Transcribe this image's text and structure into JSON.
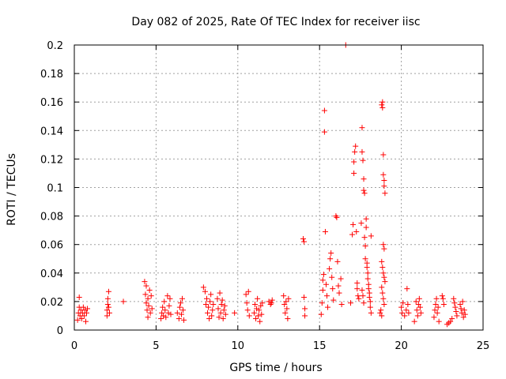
{
  "chart_data": {
    "type": "scatter",
    "title": "Day 082 of 2025, Rate Of TEC Index for receiver iisc",
    "xlabel": "GPS time / hours",
    "ylabel": "ROTI / TECUs",
    "xlim": [
      0,
      25
    ],
    "ylim": [
      0,
      0.2
    ],
    "xticks": [
      0,
      5,
      10,
      15,
      20,
      25
    ],
    "yticks": [
      0,
      0.02,
      0.04,
      0.06,
      0.08,
      0.1,
      0.12,
      0.14,
      0.16,
      0.18,
      0.2
    ],
    "xtick_labels": [
      "0",
      "5",
      "10",
      "15",
      "20",
      "25"
    ],
    "ytick_labels": [
      "0",
      "0.02",
      "0.04",
      "0.06",
      "0.08",
      "0.1",
      "0.12",
      "0.14",
      "0.16",
      "0.18",
      "0.2"
    ],
    "grid": true,
    "marker": "+",
    "color": "#ff0000",
    "series": [
      {
        "name": "ROTI",
        "points": [
          [
            0.2,
            0.007
          ],
          [
            0.25,
            0.012
          ],
          [
            0.3,
            0.016
          ],
          [
            0.3,
            0.023
          ],
          [
            0.35,
            0.01
          ],
          [
            0.4,
            0.014
          ],
          [
            0.45,
            0.008
          ],
          [
            0.5,
            0.012
          ],
          [
            0.55,
            0.016
          ],
          [
            0.6,
            0.01
          ],
          [
            0.65,
            0.014
          ],
          [
            0.7,
            0.006
          ],
          [
            0.75,
            0.012
          ],
          [
            0.8,
            0.015
          ],
          [
            2.0,
            0.01
          ],
          [
            2.0,
            0.014
          ],
          [
            2.05,
            0.018
          ],
          [
            2.05,
            0.022
          ],
          [
            2.1,
            0.027
          ],
          [
            2.1,
            0.016
          ],
          [
            2.15,
            0.012
          ],
          [
            3.0,
            0.02
          ],
          [
            4.3,
            0.034
          ],
          [
            4.35,
            0.025
          ],
          [
            4.4,
            0.019
          ],
          [
            4.4,
            0.031
          ],
          [
            4.45,
            0.014
          ],
          [
            4.5,
            0.009
          ],
          [
            4.5,
            0.022
          ],
          [
            4.55,
            0.017
          ],
          [
            4.6,
            0.028
          ],
          [
            4.65,
            0.012
          ],
          [
            4.7,
            0.024
          ],
          [
            4.75,
            0.015
          ],
          [
            5.3,
            0.008
          ],
          [
            5.35,
            0.012
          ],
          [
            5.4,
            0.016
          ],
          [
            5.45,
            0.01
          ],
          [
            5.5,
            0.02
          ],
          [
            5.55,
            0.014
          ],
          [
            5.6,
            0.009
          ],
          [
            5.7,
            0.024
          ],
          [
            5.75,
            0.012
          ],
          [
            5.8,
            0.017
          ],
          [
            5.85,
            0.022
          ],
          [
            5.9,
            0.011
          ],
          [
            6.3,
            0.012
          ],
          [
            6.4,
            0.008
          ],
          [
            6.45,
            0.016
          ],
          [
            6.5,
            0.019
          ],
          [
            6.55,
            0.011
          ],
          [
            6.6,
            0.022
          ],
          [
            6.65,
            0.014
          ],
          [
            6.7,
            0.007
          ],
          [
            7.9,
            0.03
          ],
          [
            8.0,
            0.027
          ],
          [
            8.05,
            0.018
          ],
          [
            8.1,
            0.022
          ],
          [
            8.15,
            0.012
          ],
          [
            8.2,
            0.016
          ],
          [
            8.25,
            0.008
          ],
          [
            8.3,
            0.02
          ],
          [
            8.35,
            0.025
          ],
          [
            8.4,
            0.01
          ],
          [
            8.45,
            0.014
          ],
          [
            8.5,
            0.018
          ],
          [
            8.75,
            0.022
          ],
          [
            8.8,
            0.015
          ],
          [
            8.85,
            0.009
          ],
          [
            8.9,
            0.026
          ],
          [
            8.95,
            0.012
          ],
          [
            9.0,
            0.018
          ],
          [
            9.05,
            0.021
          ],
          [
            9.1,
            0.008
          ],
          [
            9.15,
            0.014
          ],
          [
            9.2,
            0.017
          ],
          [
            9.25,
            0.011
          ],
          [
            9.8,
            0.012
          ],
          [
            10.5,
            0.025
          ],
          [
            10.55,
            0.019
          ],
          [
            10.6,
            0.014
          ],
          [
            10.65,
            0.027
          ],
          [
            10.7,
            0.01
          ],
          [
            11.0,
            0.012
          ],
          [
            11.05,
            0.018
          ],
          [
            11.1,
            0.008
          ],
          [
            11.15,
            0.015
          ],
          [
            11.2,
            0.022
          ],
          [
            11.25,
            0.01
          ],
          [
            11.3,
            0.014
          ],
          [
            11.35,
            0.006
          ],
          [
            11.4,
            0.017
          ],
          [
            11.45,
            0.011
          ],
          [
            11.5,
            0.019
          ],
          [
            11.9,
            0.02
          ],
          [
            12.0,
            0.018
          ],
          [
            12.05,
            0.019
          ],
          [
            12.1,
            0.021
          ],
          [
            12.8,
            0.024
          ],
          [
            12.85,
            0.018
          ],
          [
            12.9,
            0.012
          ],
          [
            12.95,
            0.02
          ],
          [
            13.0,
            0.015
          ],
          [
            13.05,
            0.008
          ],
          [
            13.1,
            0.022
          ],
          [
            14.0,
            0.064
          ],
          [
            14.05,
            0.062
          ],
          [
            14.05,
            0.023
          ],
          [
            14.1,
            0.015
          ],
          [
            14.1,
            0.01
          ],
          [
            15.1,
            0.011
          ],
          [
            15.15,
            0.019
          ],
          [
            15.2,
            0.028
          ],
          [
            15.2,
            0.035
          ],
          [
            15.25,
            0.039
          ],
          [
            15.3,
            0.154
          ],
          [
            15.3,
            0.139
          ],
          [
            15.35,
            0.069
          ],
          [
            15.4,
            0.032
          ],
          [
            15.45,
            0.024
          ],
          [
            15.5,
            0.016
          ],
          [
            15.6,
            0.043
          ],
          [
            15.65,
            0.05
          ],
          [
            15.7,
            0.054
          ],
          [
            15.75,
            0.037
          ],
          [
            15.8,
            0.029
          ],
          [
            15.85,
            0.021
          ],
          [
            16.0,
            0.08
          ],
          [
            16.05,
            0.079
          ],
          [
            16.1,
            0.048
          ],
          [
            16.15,
            0.031
          ],
          [
            16.2,
            0.026
          ],
          [
            16.3,
            0.036
          ],
          [
            16.35,
            0.018
          ],
          [
            16.6,
            0.2
          ],
          [
            16.9,
            0.019
          ],
          [
            17.0,
            0.067
          ],
          [
            17.05,
            0.074
          ],
          [
            17.1,
            0.11
          ],
          [
            17.1,
            0.118
          ],
          [
            17.15,
            0.125
          ],
          [
            17.2,
            0.129
          ],
          [
            17.25,
            0.069
          ],
          [
            17.3,
            0.033
          ],
          [
            17.3,
            0.029
          ],
          [
            17.35,
            0.024
          ],
          [
            17.4,
            0.022
          ],
          [
            17.55,
            0.075
          ],
          [
            17.6,
            0.125
          ],
          [
            17.6,
            0.142
          ],
          [
            17.65,
            0.119
          ],
          [
            17.7,
            0.106
          ],
          [
            17.7,
            0.098
          ],
          [
            17.75,
            0.096
          ],
          [
            17.75,
            0.065
          ],
          [
            17.8,
            0.059
          ],
          [
            17.8,
            0.05
          ],
          [
            17.85,
            0.078
          ],
          [
            17.85,
            0.072
          ],
          [
            17.9,
            0.047
          ],
          [
            17.9,
            0.044
          ],
          [
            17.95,
            0.04
          ],
          [
            17.95,
            0.036
          ],
          [
            18.0,
            0.032
          ],
          [
            18.0,
            0.029
          ],
          [
            18.05,
            0.026
          ],
          [
            18.05,
            0.023
          ],
          [
            18.1,
            0.02
          ],
          [
            18.1,
            0.016
          ],
          [
            18.15,
            0.012
          ],
          [
            18.15,
            0.066
          ],
          [
            17.6,
            0.028
          ],
          [
            17.65,
            0.024
          ],
          [
            17.7,
            0.019
          ],
          [
            18.7,
            0.012
          ],
          [
            18.75,
            0.014
          ],
          [
            18.8,
            0.01
          ],
          [
            18.8,
            0.158
          ],
          [
            18.85,
            0.16
          ],
          [
            18.85,
            0.156
          ],
          [
            18.9,
            0.123
          ],
          [
            18.9,
            0.109
          ],
          [
            18.95,
            0.105
          ],
          [
            18.95,
            0.101
          ],
          [
            19.0,
            0.096
          ],
          [
            18.9,
            0.06
          ],
          [
            18.95,
            0.057
          ],
          [
            18.8,
            0.048
          ],
          [
            18.85,
            0.044
          ],
          [
            18.9,
            0.04
          ],
          [
            18.95,
            0.037
          ],
          [
            19.0,
            0.034
          ],
          [
            18.8,
            0.03
          ],
          [
            18.85,
            0.026
          ],
          [
            18.9,
            0.022
          ],
          [
            18.95,
            0.018
          ],
          [
            20.0,
            0.016
          ],
          [
            20.05,
            0.012
          ],
          [
            20.1,
            0.019
          ],
          [
            20.2,
            0.01
          ],
          [
            20.3,
            0.014
          ],
          [
            20.35,
            0.029
          ],
          [
            20.4,
            0.018
          ],
          [
            20.45,
            0.012
          ],
          [
            20.8,
            0.006
          ],
          [
            20.9,
            0.02
          ],
          [
            20.95,
            0.014
          ],
          [
            21.0,
            0.01
          ],
          [
            21.05,
            0.018
          ],
          [
            21.1,
            0.022
          ],
          [
            21.15,
            0.016
          ],
          [
            21.2,
            0.012
          ],
          [
            22.0,
            0.009
          ],
          [
            22.05,
            0.014
          ],
          [
            22.1,
            0.018
          ],
          [
            22.15,
            0.022
          ],
          [
            22.2,
            0.012
          ],
          [
            22.25,
            0.016
          ],
          [
            22.3,
            0.006
          ],
          [
            22.5,
            0.024
          ],
          [
            22.55,
            0.022
          ],
          [
            22.6,
            0.018
          ],
          [
            22.8,
            0.004
          ],
          [
            22.9,
            0.005
          ],
          [
            23.0,
            0.006
          ],
          [
            23.1,
            0.008
          ],
          [
            23.2,
            0.022
          ],
          [
            23.25,
            0.019
          ],
          [
            23.3,
            0.016
          ],
          [
            23.35,
            0.013
          ],
          [
            23.4,
            0.01
          ],
          [
            23.6,
            0.018
          ],
          [
            23.65,
            0.015
          ],
          [
            23.7,
            0.012
          ],
          [
            23.75,
            0.02
          ],
          [
            23.8,
            0.009
          ],
          [
            23.85,
            0.014
          ],
          [
            23.9,
            0.011
          ]
        ]
      }
    ]
  }
}
